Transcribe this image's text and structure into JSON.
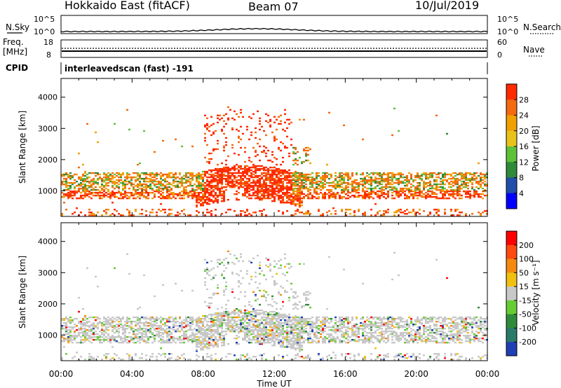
{
  "header": {
    "station": "Hokkaido East (fitACF)",
    "beam": "Beam 07",
    "date": "10/Jul/2019"
  },
  "nsky_panel": {
    "label": "N.Sky",
    "right_label": "N.Search",
    "yticks_left": [
      "10^5",
      "10^0"
    ],
    "yticks_right": [
      "10^5",
      "10^0"
    ]
  },
  "freq_panel": {
    "label_line1": "Freq.",
    "label_line2": "[MHz]",
    "yticks_left": [
      "18",
      "8"
    ],
    "yticks_right": [
      "60",
      "0"
    ],
    "right_label": "Nave"
  },
  "cpid": {
    "label": "CPID",
    "text": "interleavedscan (fast) -191"
  },
  "chart_data": [
    {
      "type": "heatmap",
      "name": "Power",
      "ylabel": "Slant Range [km]",
      "xlabel": "Time UT",
      "x_range_hours": [
        0,
        24
      ],
      "ylim_km": [
        180,
        4600
      ],
      "yticks": [
        "1000",
        "2000",
        "3000",
        "4000"
      ],
      "xticks": [
        "00:00",
        "04:00",
        "08:00",
        "12:00",
        "16:00",
        "20:00",
        "00:00"
      ],
      "colorbar": {
        "label": "Power [dB]",
        "ticks": [
          "4",
          "8",
          "12",
          "16",
          "20",
          "24",
          "28"
        ],
        "colors": [
          "#0000ff",
          "#1f4fa8",
          "#2f8a3a",
          "#5fc03a",
          "#e8c21a",
          "#f0a000",
          "#f46a10",
          "#ff2a00"
        ]
      }
    },
    {
      "type": "heatmap",
      "name": "Velocity",
      "ylabel": "Slant Range [km]",
      "xlabel": "Time UT",
      "x_range_hours": [
        0,
        24
      ],
      "ylim_km": [
        180,
        4600
      ],
      "yticks": [
        "1000",
        "2000",
        "3000",
        "4000"
      ],
      "xticks": [
        "00:00",
        "04:00",
        "08:00",
        "12:00",
        "16:00",
        "20:00",
        "00:00"
      ],
      "colorbar": {
        "label": "Velocity [m s⁻¹]",
        "ticks": [
          "200",
          "100",
          "50",
          "15",
          "-15",
          "-50",
          "-100",
          "-200"
        ],
        "colors": [
          "#1f3fb5",
          "#2a7a6a",
          "#2f8a3a",
          "#66cc33",
          "#c8c8c8",
          "#f0c010",
          "#f58a10",
          "#ff4a10",
          "#ff0000"
        ]
      }
    }
  ]
}
